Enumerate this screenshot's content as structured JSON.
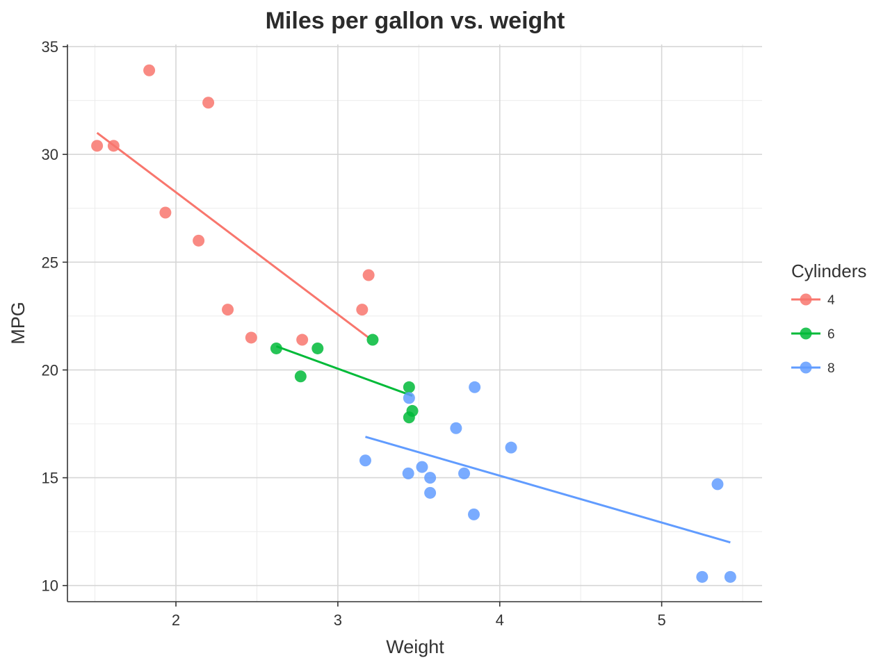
{
  "chart_data": {
    "type": "scatter",
    "title": "Miles per gallon vs. weight",
    "xlabel": "Weight",
    "ylabel": "MPG",
    "xlim": [
      1.33,
      5.62
    ],
    "ylim": [
      9.25,
      35.1
    ],
    "x_ticks": [
      2,
      3,
      4,
      5
    ],
    "y_ticks": [
      10,
      15,
      20,
      25,
      30,
      35
    ],
    "grid": true,
    "legend": {
      "title": "Cylinders",
      "position": "right"
    },
    "series": [
      {
        "name": "4",
        "color": "#F8766D",
        "points": [
          [
            1.513,
            30.4
          ],
          [
            1.615,
            30.4
          ],
          [
            1.835,
            33.9
          ],
          [
            1.935,
            27.3
          ],
          [
            2.14,
            26.0
          ],
          [
            2.2,
            32.4
          ],
          [
            2.32,
            22.8
          ],
          [
            2.465,
            21.5
          ],
          [
            2.78,
            21.4
          ],
          [
            3.15,
            22.8
          ],
          [
            3.19,
            24.4
          ]
        ],
        "trend": [
          [
            1.513,
            31.0
          ],
          [
            3.19,
            21.5
          ]
        ]
      },
      {
        "name": "6",
        "color": "#00BA38",
        "points": [
          [
            2.62,
            21.0
          ],
          [
            2.77,
            19.7
          ],
          [
            2.875,
            21.0
          ],
          [
            3.215,
            21.4
          ],
          [
            3.44,
            19.2
          ],
          [
            3.44,
            17.8
          ],
          [
            3.46,
            18.1
          ]
        ],
        "trend": [
          [
            2.62,
            21.1
          ],
          [
            3.46,
            18.8
          ]
        ]
      },
      {
        "name": "8",
        "color": "#619CFF",
        "points": [
          [
            3.17,
            15.8
          ],
          [
            3.435,
            15.2
          ],
          [
            3.44,
            18.7
          ],
          [
            3.52,
            15.5
          ],
          [
            3.57,
            15.0
          ],
          [
            3.57,
            14.3
          ],
          [
            3.73,
            17.3
          ],
          [
            3.78,
            15.2
          ],
          [
            3.84,
            13.3
          ],
          [
            3.845,
            19.2
          ],
          [
            4.07,
            16.4
          ],
          [
            5.25,
            10.4
          ],
          [
            5.345,
            14.7
          ],
          [
            5.424,
            10.4
          ]
        ],
        "trend": [
          [
            3.17,
            16.9
          ],
          [
            5.424,
            12.0
          ]
        ]
      }
    ]
  }
}
